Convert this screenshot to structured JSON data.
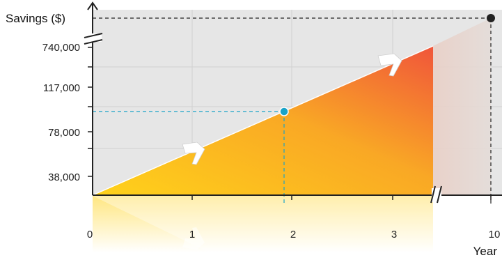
{
  "chart_data": {
    "type": "area",
    "title": "",
    "ylabel": "Savings ($)",
    "xlabel": "Year",
    "x_ticks": [
      "0",
      "1",
      "2",
      "3",
      "10"
    ],
    "y_ticks": [
      "38,000",
      "78,000",
      "117,000",
      "740,000"
    ],
    "axis_breaks": {
      "x": "between 3 and 10",
      "y": "between 117,000 and 740,000"
    },
    "grid": true,
    "series": [
      {
        "x": [
          "0",
          "3.4"
        ],
        "y": [
          0,
          740000
        ]
      }
    ],
    "projection": {
      "x": [
        "3.4",
        "10"
      ],
      "y": [
        740000,
        "top of axis"
      ]
    },
    "highlighted_points": [
      {
        "x": 1.9,
        "y": 97500,
        "color": "#1aa3c8",
        "guide": "dashed"
      },
      {
        "x": 10,
        "y": "top of axis",
        "color": "#222222",
        "guide": "dashed"
      }
    ],
    "colors": {
      "fill_start": "#ffd21a",
      "fill_end": "#f0553a",
      "projection_fill": "#e8d3cc",
      "plot_bg": "#e6e6e6",
      "highlight": "#1aa3c8",
      "endpoint": "#222222"
    },
    "arrow_markers": 3,
    "reflection": true
  }
}
